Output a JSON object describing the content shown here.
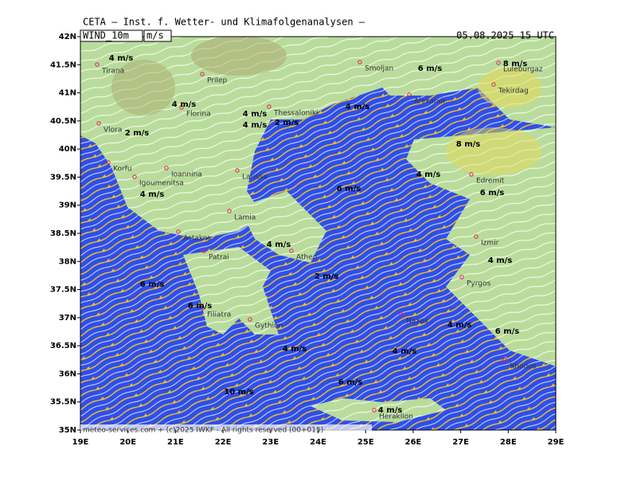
{
  "header": {
    "title": "CETA — Inst. f. Wetter- und Klimafolgenanalysen —",
    "field": "WIND_10m",
    "unit": "m/s",
    "valid": "05.08.2025 15 UTC"
  },
  "axes": {
    "lat_labels": [
      "42N",
      "41.5N",
      "41N",
      "40.5N",
      "40N",
      "39.5N",
      "39N",
      "38.5N",
      "38N",
      "37.5N",
      "37N",
      "36.5N",
      "36N",
      "35.5N",
      "35N"
    ],
    "lon_labels": [
      "19E",
      "20E",
      "21E",
      "22E",
      "23E",
      "24E",
      "25E",
      "26E",
      "27E",
      "28E",
      "29E"
    ]
  },
  "cities": [
    "Tirana",
    "Prilep",
    "Smoljan",
    "Luleburgaz",
    "Alexandr.",
    "Tekirdag",
    "Thessaloniki",
    "Florina",
    "Vlora",
    "Korfu",
    "Ioannina",
    "Igoumenitsa",
    "Larissa",
    "Edremit",
    "Lamia",
    "Astakos",
    "Patrai",
    "Izmir",
    "Athen",
    "Pyrgos",
    "Filiatra",
    "Gythion",
    "Naxos",
    "Heraklion",
    "Rhodos"
  ],
  "wind_labels": [
    "4 m/s",
    "6 m/s",
    "8 m/s",
    "4 m/s",
    "4 m/s",
    "4 m/s",
    "4 m/s",
    "2 m/s",
    "2 m/s",
    "8 m/s",
    "4 m/s",
    "6 m/s",
    "6 m/s",
    "4 m/s",
    "4 m/s",
    "4 m/s",
    "2 m/s",
    "6 m/s",
    "6 m/s",
    "4 m/s",
    "6 m/s",
    "4 m/s",
    "4 m/s",
    "6 m/s",
    "10 m/s",
    "4 m/s"
  ],
  "footer": "meteo-services.com + (c)2025 IWKF - All rights reserved (00+015)"
}
